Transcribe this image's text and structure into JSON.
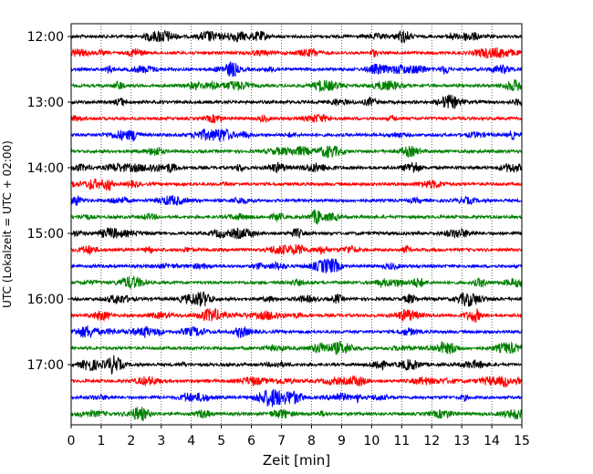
{
  "chart_data": {
    "type": "line",
    "title": "",
    "xlabel": "Zeit  [min]",
    "ylabel": "UTC (Lokalzeit = UTC + 02:00)",
    "xlim": [
      0,
      15
    ],
    "x_ticks": [
      "0",
      "1",
      "2",
      "3",
      "4",
      "5",
      "6",
      "7",
      "8",
      "9",
      "10",
      "11",
      "12",
      "13",
      "14",
      "15"
    ],
    "y_tick_labels": [
      "12:00",
      "13:00",
      "14:00",
      "15:00",
      "16:00",
      "17:00"
    ],
    "row_interval_minutes": 15,
    "rows": [
      {
        "start": "12:00",
        "color": "#000000"
      },
      {
        "start": "12:15",
        "color": "#ff0000"
      },
      {
        "start": "12:30",
        "color": "#0000ff"
      },
      {
        "start": "12:45",
        "color": "#008000"
      },
      {
        "start": "13:00",
        "color": "#000000"
      },
      {
        "start": "13:15",
        "color": "#ff0000"
      },
      {
        "start": "13:30",
        "color": "#0000ff"
      },
      {
        "start": "13:45",
        "color": "#008000"
      },
      {
        "start": "14:00",
        "color": "#000000"
      },
      {
        "start": "14:15",
        "color": "#ff0000"
      },
      {
        "start": "14:30",
        "color": "#0000ff"
      },
      {
        "start": "14:45",
        "color": "#008000"
      },
      {
        "start": "15:00",
        "color": "#000000"
      },
      {
        "start": "15:15",
        "color": "#ff0000"
      },
      {
        "start": "15:30",
        "color": "#0000ff"
      },
      {
        "start": "15:45",
        "color": "#008000"
      },
      {
        "start": "16:00",
        "color": "#000000"
      },
      {
        "start": "16:15",
        "color": "#ff0000"
      },
      {
        "start": "16:30",
        "color": "#0000ff"
      },
      {
        "start": "16:45",
        "color": "#008000"
      },
      {
        "start": "17:00",
        "color": "#000000"
      },
      {
        "start": "17:15",
        "color": "#ff0000"
      },
      {
        "start": "17:30",
        "color": "#0000ff"
      },
      {
        "start": "17:45",
        "color": "#008000"
      }
    ],
    "grid": {
      "vertical": true,
      "horizontal": false,
      "style": "dotted"
    }
  }
}
